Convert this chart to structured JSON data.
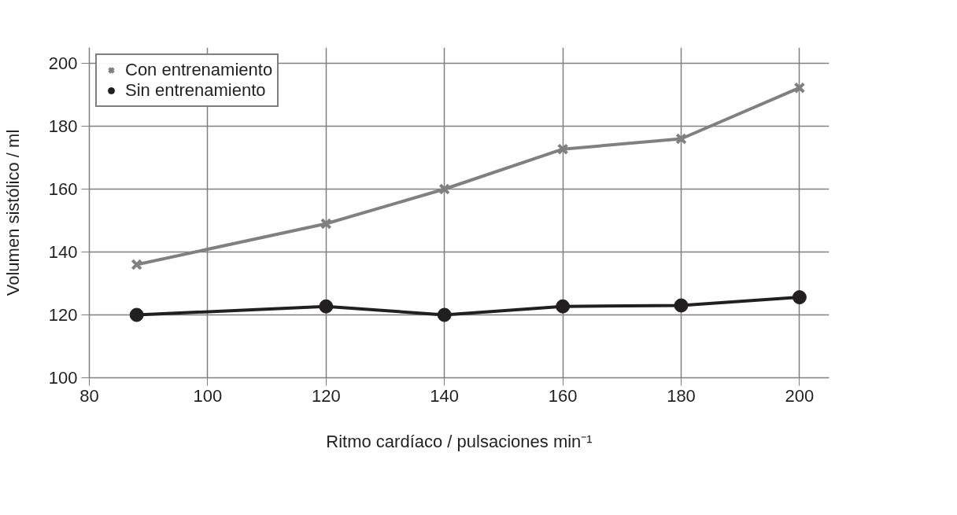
{
  "chart_data": {
    "type": "line",
    "xlabel": "Ritmo cardíaco / pulsaciones min⁻¹",
    "ylabel": "Volumen sistólico / ml",
    "x": [
      88,
      120,
      140,
      160,
      180,
      200
    ],
    "series": [
      {
        "name": "Con entrenamiento",
        "color": "#808080",
        "marker": "cross",
        "values": [
          136,
          149,
          160,
          172.7,
          176,
          192.2
        ]
      },
      {
        "name": "Sin entrenamiento",
        "color": "#231f20",
        "marker": "circle",
        "values": [
          120,
          122.7,
          120,
          122.7,
          123,
          125.6
        ]
      }
    ],
    "xlim": [
      80,
      205
    ],
    "ylim": [
      100,
      205
    ],
    "xticks": [
      80,
      100,
      120,
      140,
      160,
      180,
      200
    ],
    "yticks": [
      100,
      120,
      140,
      160,
      180,
      200
    ],
    "grid": true,
    "legend": "top left",
    "line_style": "solid"
  }
}
